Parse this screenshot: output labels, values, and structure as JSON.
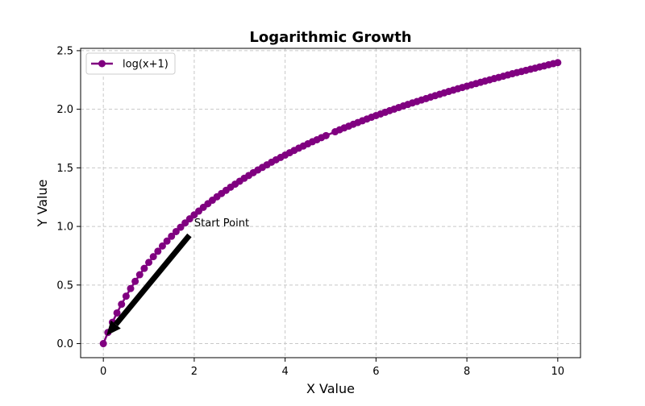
{
  "chart_data": {
    "type": "line",
    "title": "Logarithmic Growth",
    "xlabel": "X Value",
    "ylabel": "Y Value",
    "xlim": [
      -0.5,
      10.5
    ],
    "ylim": [
      -0.12,
      2.52
    ],
    "x_ticks": [
      0,
      2,
      4,
      6,
      8,
      10
    ],
    "x_tick_labels": [
      "0",
      "2",
      "4",
      "6",
      "8",
      "10"
    ],
    "y_ticks": [
      0.0,
      0.5,
      1.0,
      1.5,
      2.0,
      2.5
    ],
    "y_tick_labels": [
      "0.0",
      "0.5",
      "1.0",
      "1.5",
      "2.0",
      "2.5"
    ],
    "grid": true,
    "legend_position": "top-left",
    "series": [
      {
        "name": "log(x+1)",
        "color": "#800080",
        "marker": "circle",
        "x": [
          0,
          0.1,
          0.2,
          0.3,
          0.4,
          0.5,
          0.6,
          0.7,
          0.8,
          0.9,
          1.0,
          1.1,
          1.2,
          1.3,
          1.4,
          1.5,
          1.6,
          1.7,
          1.8,
          1.9,
          2.0,
          2.1,
          2.2,
          2.3,
          2.4,
          2.5,
          2.6,
          2.7,
          2.8,
          2.9,
          3.0,
          3.1,
          3.2,
          3.3,
          3.4,
          3.5,
          3.6,
          3.7,
          3.8,
          3.9,
          4.0,
          4.1,
          4.2,
          4.3,
          4.4,
          4.5,
          4.6,
          4.7,
          4.8,
          4.9,
          5.1,
          5.2,
          5.3,
          5.4,
          5.5,
          5.6,
          5.7,
          5.8,
          5.9,
          6.0,
          6.1,
          6.2,
          6.3,
          6.4,
          6.5,
          6.6,
          6.7,
          6.8,
          6.9,
          7.0,
          7.1,
          7.2,
          7.3,
          7.4,
          7.5,
          7.6,
          7.7,
          7.8,
          7.9,
          8.0,
          8.1,
          8.2,
          8.3,
          8.4,
          8.5,
          8.6,
          8.7,
          8.8,
          8.9,
          9.0,
          9.1,
          9.2,
          9.3,
          9.4,
          9.5,
          9.6,
          9.7,
          9.8,
          9.9,
          10.0
        ],
        "values": [
          0.0,
          0.095,
          0.182,
          0.262,
          0.336,
          0.405,
          0.47,
          0.531,
          0.588,
          0.642,
          0.693,
          0.742,
          0.788,
          0.833,
          0.875,
          0.916,
          0.956,
          0.993,
          1.03,
          1.065,
          1.099,
          1.131,
          1.163,
          1.194,
          1.224,
          1.253,
          1.281,
          1.308,
          1.335,
          1.361,
          1.386,
          1.411,
          1.435,
          1.459,
          1.482,
          1.504,
          1.526,
          1.548,
          1.569,
          1.589,
          1.609,
          1.629,
          1.649,
          1.668,
          1.686,
          1.705,
          1.723,
          1.74,
          1.758,
          1.775,
          1.808,
          1.825,
          1.841,
          1.856,
          1.872,
          1.887,
          1.902,
          1.917,
          1.932,
          1.946,
          1.96,
          1.974,
          1.988,
          2.001,
          2.015,
          2.028,
          2.041,
          2.054,
          2.066,
          2.079,
          2.091,
          2.104,
          2.116,
          2.128,
          2.14,
          2.152,
          2.163,
          2.175,
          2.186,
          2.197,
          2.208,
          2.219,
          2.23,
          2.241,
          2.251,
          2.262,
          2.272,
          2.282,
          2.293,
          2.303,
          2.313,
          2.322,
          2.332,
          2.342,
          2.351,
          2.361,
          2.37,
          2.38,
          2.389,
          2.398
        ]
      }
    ],
    "annotations": [
      {
        "text": "Start Point",
        "text_x": 2,
        "text_y": 1,
        "arrow_to_x": 0,
        "arrow_to_y": 0,
        "arrow_color": "#000000"
      }
    ]
  }
}
